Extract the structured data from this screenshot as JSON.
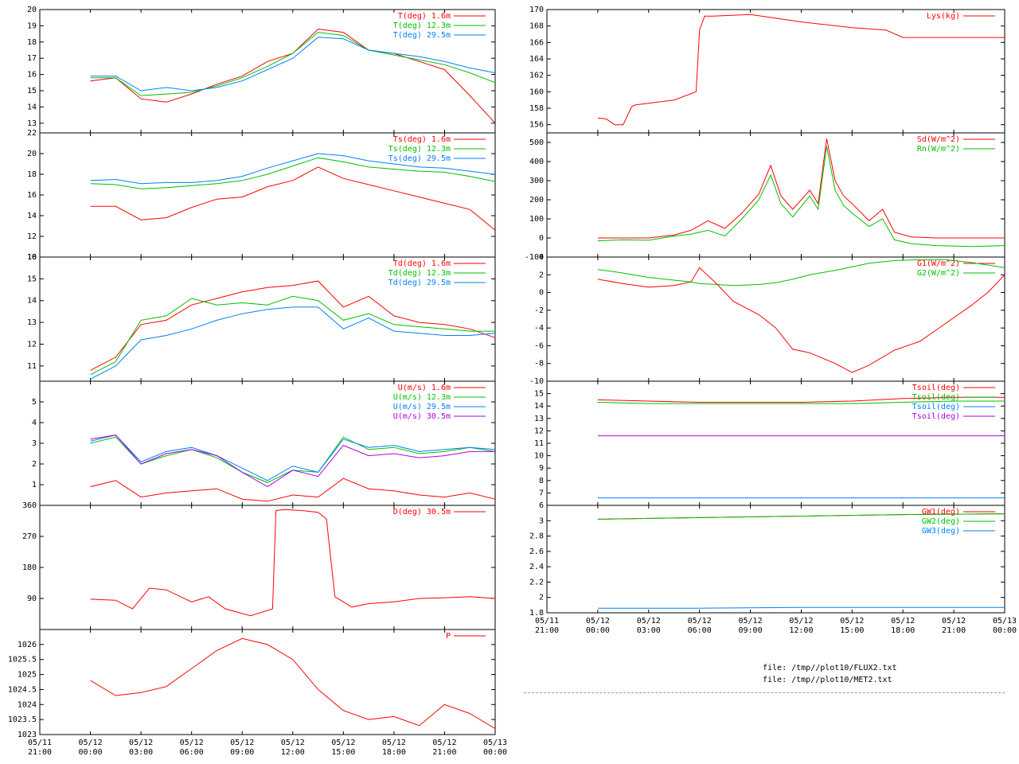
{
  "xaxis": {
    "range": [
      "05/11 21:00",
      "05/13 00:00"
    ],
    "tick_labels": [
      [
        "05/11",
        "21:00"
      ],
      [
        "05/12",
        "00:00"
      ],
      [
        "05/12",
        "03:00"
      ],
      [
        "05/12",
        "06:00"
      ],
      [
        "05/12",
        "09:00"
      ],
      [
        "05/12",
        "12:00"
      ],
      [
        "05/12",
        "15:00"
      ],
      [
        "05/12",
        "18:00"
      ],
      [
        "05/12",
        "21:00"
      ],
      [
        "05/13",
        "00:00"
      ]
    ]
  },
  "footer": {
    "files": [
      "file: /tmp//plot10/FLUX2.txt",
      "file: /tmp//plot10/MET2.txt"
    ]
  },
  "chart_data": [
    {
      "type": "line",
      "panel": "left-1",
      "ylim": [
        12.4,
        20
      ],
      "yticks": [
        13,
        14,
        15,
        16,
        17,
        18,
        19,
        20
      ],
      "x": [
        0,
        1.5,
        3,
        4.5,
        6,
        7.5,
        9,
        10.5,
        12,
        13.5,
        15,
        16.5,
        18,
        19.5,
        21,
        22.5,
        24
      ],
      "series": [
        {
          "name": "T(deg)  1.6m",
          "color": "#ff0000",
          "values": [
            15.6,
            15.8,
            14.5,
            14.3,
            14.8,
            15.4,
            15.9,
            16.8,
            17.3,
            18.8,
            18.6,
            17.5,
            17.3,
            16.8,
            16.3,
            14.7,
            13.0
          ]
        },
        {
          "name": "T(deg) 12.3m",
          "color": "#00c000",
          "values": [
            15.8,
            15.8,
            14.7,
            14.8,
            14.9,
            15.3,
            15.8,
            16.5,
            17.3,
            18.6,
            18.4,
            17.5,
            17.2,
            16.9,
            16.6,
            16.1,
            15.5
          ]
        },
        {
          "name": "T(deg) 29.5m",
          "color": "#0080ff",
          "values": [
            15.9,
            15.9,
            15.0,
            15.2,
            15.0,
            15.2,
            15.6,
            16.3,
            17.0,
            18.3,
            18.2,
            17.5,
            17.3,
            17.1,
            16.8,
            16.4,
            16.1
          ]
        }
      ]
    },
    {
      "type": "line",
      "panel": "left-2",
      "ylim": [
        10,
        22
      ],
      "yticks": [
        10,
        12,
        14,
        16,
        18,
        20,
        22
      ],
      "x": [
        0,
        1.5,
        3,
        4.5,
        6,
        7.5,
        9,
        10.5,
        12,
        13.5,
        15,
        16.5,
        18,
        19.5,
        21,
        22.5,
        24
      ],
      "series": [
        {
          "name": "Ts(deg)  1.6m",
          "color": "#ff0000",
          "values": [
            14.9,
            14.9,
            13.6,
            13.8,
            14.8,
            15.6,
            15.8,
            16.8,
            17.4,
            18.7,
            17.6,
            17.0,
            16.4,
            15.8,
            15.2,
            14.6,
            12.6
          ]
        },
        {
          "name": "Ts(deg) 12.3m",
          "color": "#00c000",
          "values": [
            17.1,
            17.0,
            16.6,
            16.7,
            16.9,
            17.1,
            17.4,
            18.0,
            18.8,
            19.6,
            19.2,
            18.7,
            18.5,
            18.3,
            18.2,
            17.8,
            17.3
          ]
        },
        {
          "name": "Ts(deg) 29.5m",
          "color": "#0080ff",
          "values": [
            17.4,
            17.5,
            17.1,
            17.2,
            17.2,
            17.4,
            17.8,
            18.6,
            19.3,
            20.0,
            19.8,
            19.3,
            19.0,
            18.7,
            18.6,
            18.3,
            18.0
          ]
        }
      ]
    },
    {
      "type": "line",
      "panel": "left-3",
      "ylim": [
        10.3,
        16
      ],
      "yticks": [
        11,
        12,
        13,
        14,
        15,
        16
      ],
      "x": [
        0,
        1.5,
        3,
        4.5,
        6,
        7.5,
        9,
        10.5,
        12,
        13.5,
        15,
        16.5,
        18,
        19.5,
        21,
        22.5,
        24
      ],
      "series": [
        {
          "name": "Td(deg)  1.6m",
          "color": "#ff0000",
          "values": [
            10.8,
            11.4,
            12.9,
            13.1,
            13.8,
            14.1,
            14.4,
            14.6,
            14.7,
            14.9,
            13.7,
            14.2,
            13.3,
            13.0,
            12.9,
            12.7,
            12.3
          ]
        },
        {
          "name": "Td(deg) 12.3m",
          "color": "#00c000",
          "values": [
            10.6,
            11.2,
            13.1,
            13.3,
            14.1,
            13.8,
            13.9,
            13.8,
            14.2,
            14.0,
            13.1,
            13.4,
            12.9,
            12.8,
            12.7,
            12.6,
            12.6
          ]
        },
        {
          "name": "Td(deg) 29.5m",
          "color": "#0080ff",
          "values": [
            10.4,
            11.0,
            12.2,
            12.4,
            12.7,
            13.1,
            13.4,
            13.6,
            13.7,
            13.7,
            12.7,
            13.2,
            12.6,
            12.5,
            12.4,
            12.4,
            12.5
          ]
        }
      ]
    },
    {
      "type": "line",
      "panel": "left-4",
      "ylim": [
        0,
        6
      ],
      "yticks": [
        1,
        2,
        3,
        4,
        5
      ],
      "x": [
        0,
        1.5,
        3,
        4.5,
        6,
        7.5,
        9,
        10.5,
        12,
        13.5,
        15,
        16.5,
        18,
        19.5,
        21,
        22.5,
        24
      ],
      "series": [
        {
          "name": "U(m/s)  1.6m",
          "color": "#ff0000",
          "values": [
            0.9,
            1.2,
            0.4,
            0.6,
            0.7,
            0.8,
            0.3,
            0.2,
            0.5,
            0.4,
            1.3,
            0.8,
            0.7,
            0.5,
            0.4,
            0.6,
            0.3
          ]
        },
        {
          "name": "U(m/s) 12.3m",
          "color": "#00c000",
          "values": [
            3.0,
            3.3,
            2.0,
            2.4,
            2.7,
            2.3,
            1.6,
            1.1,
            1.7,
            1.6,
            3.3,
            2.7,
            2.8,
            2.5,
            2.6,
            2.8,
            2.6
          ]
        },
        {
          "name": "U(m/s) 29.5m",
          "color": "#0080ff",
          "values": [
            3.1,
            3.4,
            2.1,
            2.6,
            2.8,
            2.4,
            1.8,
            1.2,
            1.9,
            1.6,
            3.2,
            2.8,
            2.9,
            2.6,
            2.7,
            2.8,
            2.7
          ]
        },
        {
          "name": "U(m/s) 30.5m",
          "color": "#b000e0",
          "values": [
            3.2,
            3.4,
            2.0,
            2.5,
            2.7,
            2.4,
            1.6,
            0.9,
            1.7,
            1.4,
            2.9,
            2.4,
            2.5,
            2.3,
            2.4,
            2.6,
            2.6
          ]
        }
      ]
    },
    {
      "type": "line",
      "panel": "left-5",
      "ylim": [
        0,
        360
      ],
      "yticks": [
        90,
        180,
        270,
        360
      ],
      "x": [
        0,
        1.5,
        2.5,
        3.5,
        4.5,
        6,
        7,
        8,
        9.5,
        10.8,
        11,
        11.5,
        12.5,
        13.5,
        14.0,
        14.5,
        15.5,
        16.5,
        18,
        19.5,
        21,
        22.5,
        24
      ],
      "series": [
        {
          "name": "D(deg)  30.5m",
          "color": "#ff0000",
          "values": [
            88,
            85,
            60,
            120,
            115,
            80,
            95,
            60,
            40,
            60,
            345,
            348,
            345,
            340,
            320,
            95,
            65,
            75,
            80,
            90,
            92,
            95,
            90
          ]
        }
      ]
    },
    {
      "type": "line",
      "panel": "left-6",
      "ylim": [
        1023,
        1026.5
      ],
      "yticks": [
        1023,
        1023.5,
        1024,
        1024.5,
        1025,
        1025.5,
        1026
      ],
      "x": [
        0,
        1.5,
        3,
        4.5,
        6,
        7.5,
        9,
        10.5,
        12,
        13.5,
        15,
        16.5,
        18,
        19.5,
        21,
        22.5,
        24
      ],
      "series": [
        {
          "name": "P",
          "color": "#ff0000",
          "values": [
            1024.8,
            1024.3,
            1024.4,
            1024.6,
            1025.2,
            1025.8,
            1026.2,
            1026.0,
            1025.5,
            1024.5,
            1023.8,
            1023.5,
            1023.6,
            1023.3,
            1024.0,
            1023.7,
            1023.2
          ]
        }
      ]
    },
    {
      "type": "line",
      "panel": "right-1",
      "ylim": [
        155,
        170
      ],
      "yticks": [
        156,
        158,
        160,
        162,
        164,
        166,
        168,
        170
      ],
      "x": [
        0,
        0.5,
        1.0,
        1.5,
        2.0,
        2.2,
        4.5,
        5.8,
        6.0,
        6.3,
        6.8,
        9.0,
        12,
        15,
        17,
        18,
        20,
        24
      ],
      "series": [
        {
          "name": "Lys(kg)",
          "color": "#ff0000",
          "values": [
            156.8,
            156.7,
            156.0,
            156.0,
            158.2,
            158.4,
            159.0,
            160.0,
            167.5,
            169.2,
            169.2,
            169.4,
            168.5,
            167.8,
            167.5,
            166.6,
            166.6,
            166.6
          ]
        }
      ]
    },
    {
      "type": "line",
      "panel": "right-2",
      "ylim": [
        -100,
        550
      ],
      "yticks": [
        -100,
        0,
        100,
        200,
        300,
        400,
        500
      ],
      "x": [
        0,
        1.5,
        3,
        4.5,
        5.5,
        6.5,
        7.5,
        8.5,
        9.5,
        10.2,
        10.8,
        11.5,
        12.5,
        13,
        13.5,
        14,
        14.5,
        15,
        16,
        16.8,
        17.5,
        18.5,
        20,
        22,
        24
      ],
      "series": [
        {
          "name": "Sd(W/m^2)",
          "color": "#ff0000",
          "values": [
            0,
            0,
            0,
            15,
            40,
            90,
            50,
            130,
            230,
            380,
            220,
            150,
            250,
            180,
            520,
            300,
            220,
            180,
            90,
            150,
            30,
            5,
            0,
            0,
            0
          ]
        },
        {
          "name": "Rn(W/m^2)",
          "color": "#00c000",
          "values": [
            -15,
            -10,
            -12,
            10,
            20,
            40,
            10,
            100,
            200,
            330,
            180,
            110,
            220,
            150,
            480,
            250,
            170,
            130,
            60,
            100,
            -10,
            -30,
            -40,
            -45,
            -40
          ]
        }
      ]
    },
    {
      "type": "line",
      "panel": "right-3",
      "ylim": [
        -10,
        4
      ],
      "yticks": [
        -10,
        -8,
        -6,
        -4,
        -2,
        0,
        2,
        4
      ],
      "x": [
        0,
        1.5,
        3,
        4.5,
        5.5,
        6.0,
        7,
        8,
        9.5,
        10.5,
        11.5,
        12.5,
        14,
        15,
        16,
        17.5,
        19,
        20.5,
        22,
        23,
        24
      ],
      "series": [
        {
          "name": "G1(W/m^2)",
          "color": "#ff0000",
          "values": [
            1.5,
            1.0,
            0.6,
            0.8,
            1.2,
            2.8,
            1.0,
            -1.0,
            -2.5,
            -4.0,
            -6.4,
            -6.8,
            -8.0,
            -9.0,
            -8.2,
            -6.5,
            -5.5,
            -3.5,
            -1.5,
            0.0,
            2.0
          ]
        },
        {
          "name": "G2(W/m^2)",
          "color": "#00c000",
          "values": [
            2.6,
            2.2,
            1.7,
            1.4,
            1.2,
            1.0,
            0.9,
            0.8,
            0.9,
            1.1,
            1.5,
            2.0,
            2.5,
            2.9,
            3.3,
            3.6,
            3.7,
            3.7,
            3.4,
            3.1,
            2.8
          ]
        }
      ]
    },
    {
      "type": "line",
      "panel": "right-4",
      "ylim": [
        6,
        16
      ],
      "yticks": [
        6,
        7,
        8,
        9,
        10,
        11,
        12,
        13,
        14,
        15
      ],
      "x": [
        0,
        3,
        6,
        9,
        12,
        15,
        18,
        21,
        24
      ],
      "series": [
        {
          "name": "Tsoil(deg)",
          "color": "#ff0000",
          "values": [
            14.5,
            14.4,
            14.3,
            14.3,
            14.3,
            14.4,
            14.6,
            14.7,
            14.7
          ]
        },
        {
          "name": "Tsoil(deg)",
          "color": "#00c000",
          "values": [
            14.3,
            14.2,
            14.2,
            14.2,
            14.2,
            14.2,
            14.3,
            14.4,
            14.4
          ]
        },
        {
          "name": "Tsoil(deg)",
          "color": "#0080ff",
          "values": [
            6.6,
            6.6,
            6.6,
            6.6,
            6.6,
            6.6,
            6.6,
            6.6,
            6.6
          ]
        },
        {
          "name": "Tsoil(deg)",
          "color": "#b000e0",
          "values": [
            11.6,
            11.6,
            11.6,
            11.6,
            11.6,
            11.6,
            11.6,
            11.6,
            11.6
          ]
        }
      ]
    },
    {
      "type": "line",
      "panel": "right-5",
      "ylim": [
        1.8,
        3.2
      ],
      "yticks": [
        1.8,
        2,
        2.2,
        2.4,
        2.6,
        2.8,
        3
      ],
      "x": [
        0,
        6,
        12,
        18,
        24
      ],
      "series": [
        {
          "name": "GW1(deg)",
          "color": "#ff0000",
          "values": [
            3.02,
            3.04,
            3.06,
            3.08,
            3.09
          ]
        },
        {
          "name": "GW2(deg)",
          "color": "#00c000",
          "values": [
            3.02,
            3.04,
            3.06,
            3.08,
            3.09
          ]
        },
        {
          "name": "GW3(deg)",
          "color": "#0080ff",
          "values": [
            1.86,
            1.86,
            1.87,
            1.87,
            1.87
          ]
        }
      ]
    }
  ]
}
